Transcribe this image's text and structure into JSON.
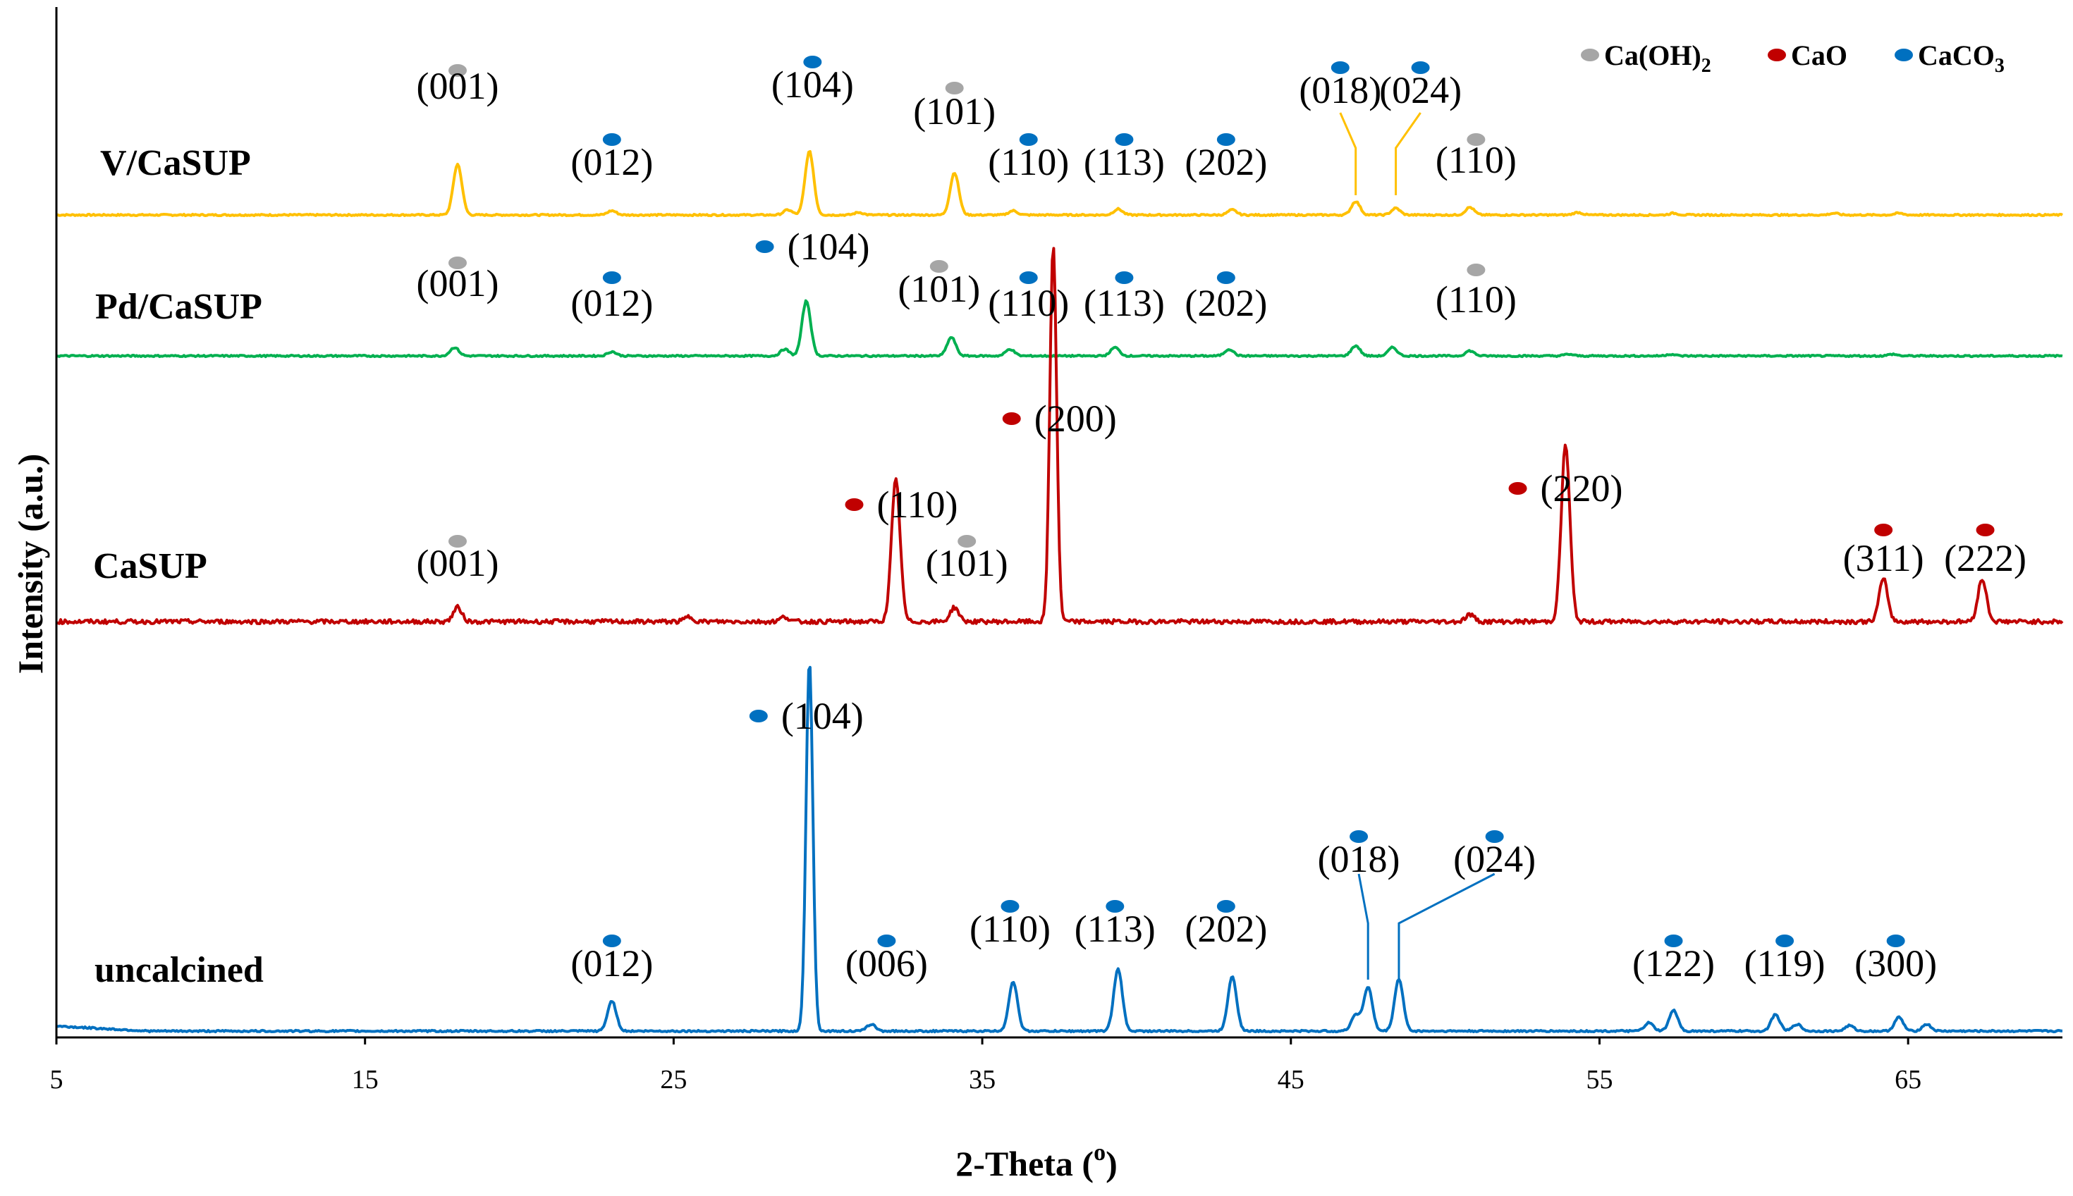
{
  "chart_data": {
    "type": "line",
    "title": "",
    "xlabel_main": "2-Theta (",
    "xlabel_sup": "o",
    "xlabel_end": ")",
    "ylabel": "Intensity (a.u.)",
    "xlim": [
      5,
      70
    ],
    "xticks": [
      "5",
      "15",
      "25",
      "35",
      "45",
      "55",
      "65"
    ],
    "xtick_values": [
      5,
      15,
      25,
      35,
      45,
      55,
      65
    ],
    "legend": [
      {
        "phase": "CaOH2",
        "text": "Ca(OH)",
        "sub": "2",
        "color": "#a6a6a6"
      },
      {
        "phase": "CaO",
        "text": "CaO",
        "sub": "",
        "color": "#c00000"
      },
      {
        "phase": "CaCO3",
        "text": "CaCO",
        "sub": "3",
        "color": "#0070c0"
      }
    ],
    "series": [
      {
        "name": "V/CaSUP",
        "color": "#ffc000",
        "baseline": 0,
        "noise": 0.9,
        "peaks": [
          [
            18.0,
            60
          ],
          [
            23.0,
            5
          ],
          [
            28.7,
            6
          ],
          [
            29.4,
            75
          ],
          [
            31.0,
            3
          ],
          [
            34.1,
            50
          ],
          [
            36.0,
            5
          ],
          [
            39.4,
            7
          ],
          [
            43.1,
            6
          ],
          [
            47.1,
            16
          ],
          [
            48.4,
            8
          ],
          [
            50.8,
            9
          ],
          [
            54.3,
            3
          ],
          [
            57.4,
            2
          ],
          [
            62.6,
            2
          ],
          [
            64.7,
            2
          ]
        ],
        "annotations": [
          {
            "label": "(001)",
            "phase": "CaOH2",
            "x": 18.0
          },
          {
            "label": "(012)",
            "phase": "CaCO3",
            "x": 23.0
          },
          {
            "label": "(104)",
            "phase": "CaCO3",
            "x": 29.5
          },
          {
            "label": "(101)",
            "phase": "CaOH2",
            "x": 34.1
          },
          {
            "label": "(110)",
            "phase": "CaCO3",
            "x": 36.5
          },
          {
            "label": "(113)",
            "phase": "CaCO3",
            "x": 39.6
          },
          {
            "label": "(202)",
            "phase": "CaCO3",
            "x": 42.9
          },
          {
            "label": "(018)",
            "phase": "CaCO3",
            "x": 46.6
          },
          {
            "label": "(024)",
            "phase": "CaCO3",
            "x": 49.2
          },
          {
            "label": "(110)",
            "phase": "CaOH2",
            "x": 51.0
          }
        ]
      },
      {
        "name": "Pd/CaSUP",
        "color": "#00b050",
        "baseline": 0,
        "noise": 0.9,
        "peaks": [
          [
            17.9,
            10
          ],
          [
            23.0,
            5
          ],
          [
            28.6,
            8
          ],
          [
            29.3,
            65
          ],
          [
            34.0,
            22
          ],
          [
            35.9,
            8
          ],
          [
            39.3,
            10
          ],
          [
            43.0,
            8
          ],
          [
            47.1,
            12
          ],
          [
            48.3,
            10
          ],
          [
            50.8,
            6
          ],
          [
            54.0,
            2
          ],
          [
            57.3,
            2
          ],
          [
            64.5,
            2
          ]
        ],
        "annotations": [
          {
            "label": "(001)",
            "phase": "CaOH2",
            "x": 18.0
          },
          {
            "label": "(012)",
            "phase": "CaCO3",
            "x": 23.0
          },
          {
            "label": "(104)",
            "phase": "CaCO3",
            "x": 28.5
          },
          {
            "label": "(101)",
            "phase": "CaOH2",
            "x": 33.6
          },
          {
            "label": "(110)",
            "phase": "CaCO3",
            "x": 36.5
          },
          {
            "label": "(113)",
            "phase": "CaCO3",
            "x": 39.6
          },
          {
            "label": "(202)",
            "phase": "CaCO3",
            "x": 42.9
          },
          {
            "label": "(110)",
            "phase": "CaOH2",
            "x": 51.0
          }
        ]
      },
      {
        "name": "CaSUP",
        "color": "#c00000",
        "baseline": 0,
        "noise": 0.9,
        "peaks": [
          [
            18.0,
            6
          ],
          [
            25.5,
            2
          ],
          [
            28.6,
            2
          ],
          [
            32.2,
            60
          ],
          [
            34.1,
            6
          ],
          [
            37.3,
            160
          ],
          [
            50.8,
            3
          ],
          [
            53.9,
            75
          ],
          [
            64.2,
            18
          ],
          [
            67.4,
            18
          ]
        ],
        "annotations": [
          {
            "label": "(001)",
            "phase": "CaOH2",
            "x": 18.0
          },
          {
            "label": "(110)",
            "phase": "CaO",
            "x": 31.4
          },
          {
            "label": "(101)",
            "phase": "CaOH2",
            "x": 34.5
          },
          {
            "label": "(200)",
            "phase": "CaO",
            "x": 36.5
          },
          {
            "label": "(220)",
            "phase": "CaO",
            "x": 52.9
          },
          {
            "label": "(311)",
            "phase": "CaO",
            "x": 64.2
          },
          {
            "label": "(222)",
            "phase": "CaO",
            "x": 67.5
          }
        ]
      },
      {
        "name": "uncalcined",
        "color": "#0070c0",
        "baseline": 0,
        "noise": 0.6,
        "peaks": [
          [
            23.0,
            22
          ],
          [
            29.4,
            270
          ],
          [
            31.4,
            5
          ],
          [
            36.0,
            36
          ],
          [
            39.4,
            45
          ],
          [
            43.1,
            40
          ],
          [
            47.1,
            12
          ],
          [
            47.5,
            32
          ],
          [
            48.5,
            38
          ],
          [
            56.6,
            6
          ],
          [
            57.4,
            15
          ],
          [
            60.7,
            12
          ],
          [
            61.4,
            5
          ],
          [
            63.1,
            4
          ],
          [
            64.7,
            10
          ],
          [
            65.6,
            5
          ]
        ],
        "annotations": [
          {
            "label": "(012)",
            "phase": "CaCO3",
            "x": 23.0
          },
          {
            "label": "(104)",
            "phase": "CaCO3",
            "x": 28.3
          },
          {
            "label": "(006)",
            "phase": "CaCO3",
            "x": 31.9
          },
          {
            "label": "(110)",
            "phase": "CaCO3",
            "x": 35.9
          },
          {
            "label": "(113)",
            "phase": "CaCO3",
            "x": 39.3
          },
          {
            "label": "(202)",
            "phase": "CaCO3",
            "x": 42.9
          },
          {
            "label": "(018)",
            "phase": "CaCO3",
            "x": 47.2
          },
          {
            "label": "(024)",
            "phase": "CaCO3",
            "x": 51.6
          },
          {
            "label": "(122)",
            "phase": "CaCO3",
            "x": 57.4
          },
          {
            "label": "(119)",
            "phase": "CaCO3",
            "x": 61.0
          },
          {
            "label": "(300)",
            "phase": "CaCO3",
            "x": 64.6
          }
        ]
      }
    ]
  }
}
